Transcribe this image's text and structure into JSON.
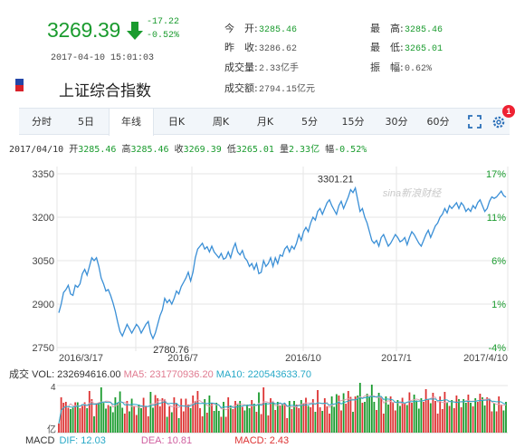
{
  "quote": {
    "price": "3269.39",
    "change": "-17.22",
    "change_pct": "-0.52%",
    "timestamp": "2017-04-10 15:01:03",
    "name": "上证综合指数"
  },
  "stats": [
    {
      "label": "今　开:",
      "value": "3285.46",
      "color": "green"
    },
    {
      "label": "最　高:",
      "value": "3285.46",
      "color": "green"
    },
    {
      "label": "昨　收:",
      "value": "3286.62",
      "color": "gray"
    },
    {
      "label": "最　低:",
      "value": "3265.01",
      "color": "green"
    },
    {
      "label": "成交量:",
      "value": "2.33亿手",
      "color": "gray"
    },
    {
      "label": "振　幅:",
      "value": "0.62%",
      "color": "gray"
    },
    {
      "label": "成交额:",
      "value": "2794.15亿元",
      "color": "gray"
    }
  ],
  "tabs": [
    {
      "label": "分时"
    },
    {
      "label": "5日"
    },
    {
      "label": "年线",
      "active": true
    },
    {
      "label": "日K"
    },
    {
      "label": "周K"
    },
    {
      "label": "月K"
    },
    {
      "label": "5分"
    },
    {
      "label": "15分"
    },
    {
      "label": "30分"
    },
    {
      "label": "60分"
    }
  ],
  "notification_count": "1",
  "info_bar": {
    "date": "2017/04/10",
    "open_label": "开",
    "open": "3285.46",
    "high_label": "高",
    "high": "3285.46",
    "close_label": "收",
    "close": "3269.39",
    "low_label": "低",
    "low": "3265.01",
    "vol_label": "量",
    "vol": "2.33亿",
    "amp_label": "幅",
    "amp": "-0.52%"
  },
  "watermark": "sina新浪财经",
  "volume_bar": {
    "label": "成交",
    "vol": "VOL: 232694616.00",
    "ma5": "MA5: 231770936.20",
    "ma10": "MA10: 220543633.70",
    "ytop": "4",
    "ybottom": "亿"
  },
  "macd_bar": {
    "label": "MACD",
    "dif": "DIF: 12.03",
    "dea": "DEA: 10.81",
    "macd": "MACD: 2.43"
  },
  "colors": {
    "up": "#d33",
    "down": "#1a9b2e",
    "line": "#3a8fd6",
    "ma10": "#27a9c7",
    "ma5": "#e0a0b0"
  },
  "chart_data": {
    "type": "line",
    "y_ticks": [
      "3350",
      "3200",
      "3050",
      "2900",
      "2750"
    ],
    "y_pct_ticks": [
      "17%",
      "11%",
      "6%",
      "1%",
      "-4%"
    ],
    "x_ticks": [
      "2016/3/17",
      "2016/7",
      "2016/10",
      "2017/1",
      "2017/4/10"
    ],
    "ylim": [
      2750,
      3350
    ],
    "high_label": "3301.21",
    "low_label": "2780.76",
    "series": [
      {
        "values": [
          2870,
          2900,
          2940,
          2950,
          2965,
          2935,
          2930,
          2965,
          2958,
          2970,
          3005,
          3020,
          3000,
          3030,
          3060,
          3050,
          3060,
          3030,
          2990,
          2970,
          2945,
          2950,
          2930,
          2905,
          2875,
          2838,
          2805,
          2790,
          2810,
          2830,
          2815,
          2800,
          2815,
          2830,
          2820,
          2800,
          2815,
          2830,
          2840,
          2800,
          2781,
          2800,
          2830,
          2860,
          2880,
          2920,
          2905,
          2915,
          2900,
          2920,
          2945,
          2935,
          2960,
          2975,
          2990,
          3010,
          2980,
          3010,
          3060,
          3090,
          3100,
          3110,
          3090,
          3098,
          3080,
          3100,
          3080,
          3070,
          3060,
          3075,
          3055,
          3060,
          3080,
          3060,
          3090,
          3110,
          3080,
          3070,
          3085,
          3060,
          3050,
          3030,
          3040,
          3020,
          3040,
          3005,
          3010,
          3050,
          3030,
          3040,
          3060,
          3030,
          3060,
          3040,
          3070,
          3065,
          3090,
          3100,
          3080,
          3100,
          3090,
          3110,
          3140,
          3120,
          3150,
          3165,
          3150,
          3180,
          3200,
          3190,
          3220,
          3230,
          3210,
          3230,
          3250,
          3260,
          3240,
          3225,
          3210,
          3240,
          3255,
          3230,
          3250,
          3270,
          3295,
          3285,
          3301,
          3260,
          3220,
          3230,
          3200,
          3180,
          3150,
          3120,
          3110,
          3120,
          3100,
          3130,
          3140,
          3120,
          3100,
          3110,
          3125,
          3140,
          3130,
          3115,
          3120,
          3130,
          3105,
          3130,
          3150,
          3140,
          3125,
          3110,
          3100,
          3120,
          3140,
          3155,
          3130,
          3150,
          3170,
          3180,
          3200,
          3210,
          3230,
          3215,
          3240,
          3230,
          3240,
          3250,
          3230,
          3250,
          3240,
          3220,
          3230,
          3220,
          3240,
          3230,
          3250,
          3260,
          3240,
          3220,
          3230,
          3255,
          3270,
          3265,
          3270,
          3280,
          3290,
          3275,
          3269
        ]
      }
    ]
  }
}
